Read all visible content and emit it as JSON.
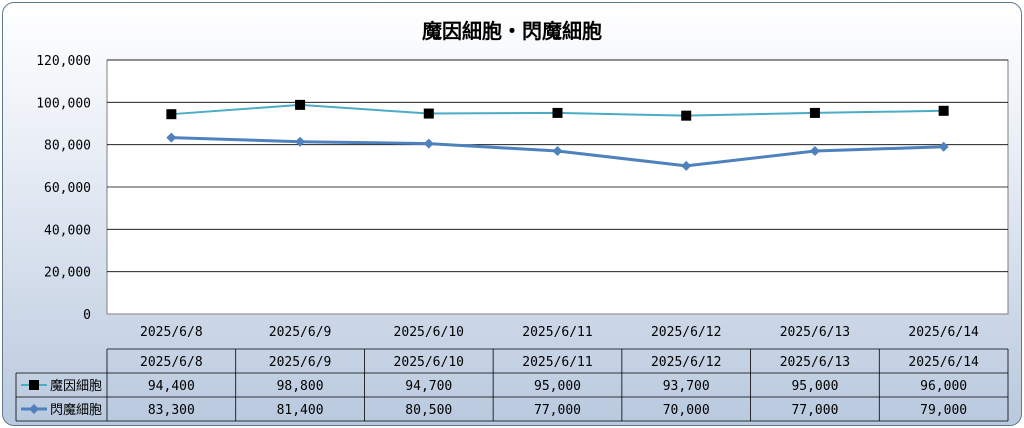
{
  "chart_data": {
    "type": "line",
    "title": "魔因細胞・閃魔細胞",
    "categories": [
      "2025/6/8",
      "2025/6/9",
      "2025/6/10",
      "2025/6/11",
      "2025/6/12",
      "2025/6/13",
      "2025/6/14"
    ],
    "y_ticks": [
      "0",
      "20,000",
      "40,000",
      "60,000",
      "80,000",
      "100,000",
      "120,000"
    ],
    "ylim": [
      0,
      120000
    ],
    "grid": true,
    "legend_position": "data-table",
    "series": [
      {
        "name": "魔因細胞",
        "values": [
          94400,
          98800,
          94700,
          95000,
          93700,
          95000,
          96000
        ],
        "labels": [
          "94,400",
          "98,800",
          "94,700",
          "95,000",
          "93,700",
          "95,000",
          "96,000"
        ],
        "color": "#4bacc6",
        "marker": "square",
        "marker_color": "#000000"
      },
      {
        "name": "閃魔細胞",
        "values": [
          83300,
          81400,
          80500,
          77000,
          70000,
          77000,
          79000
        ],
        "labels": [
          "83,300",
          "81,400",
          "80,500",
          "77,000",
          "70,000",
          "77,000",
          "79,000"
        ],
        "color": "#4f81bd",
        "marker": "diamond",
        "marker_color": "#4f81bd"
      }
    ]
  }
}
